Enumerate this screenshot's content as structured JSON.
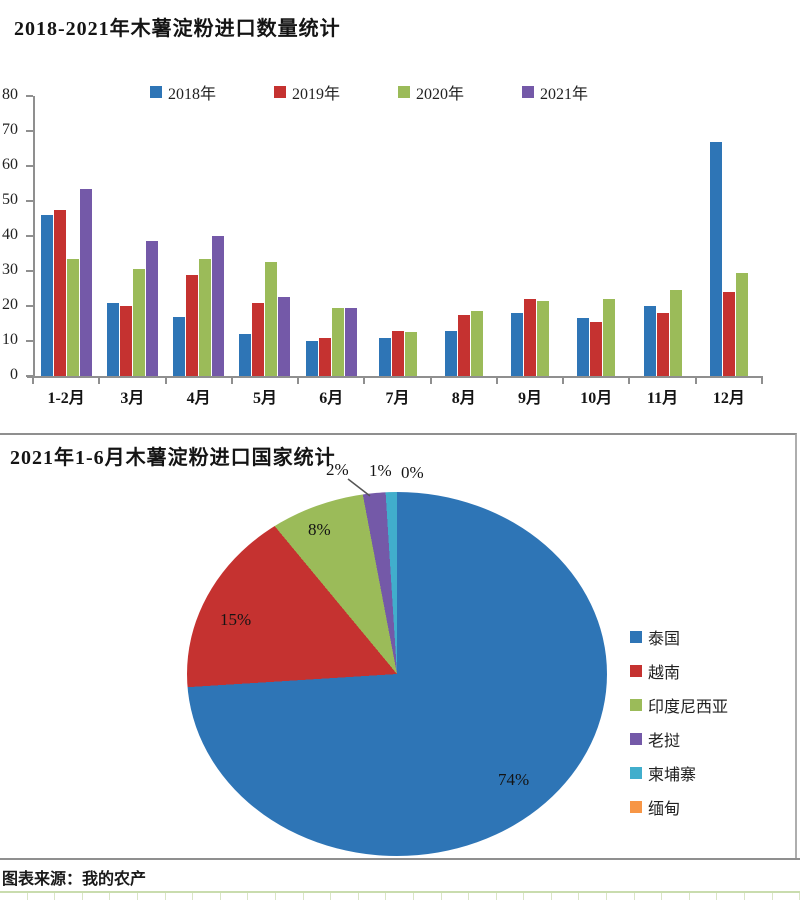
{
  "bar_section": {
    "title": "2018-2021年木薯淀粉进口数量统计"
  },
  "pie_section": {
    "title": "2021年1-6月木薯淀粉进口国家统计"
  },
  "footer": {
    "source": "图表来源：我的农产"
  },
  "colors": {
    "blue": "#2E75B6",
    "red": "#C53230",
    "green": "#9BBB59",
    "purple": "#7459A8",
    "cyan": "#41AECC",
    "orange": "#F79646",
    "axis": "#8f8f8f"
  },
  "chart_data": [
    {
      "type": "bar",
      "title": "2018-2021年木薯淀粉进口数量统计",
      "categories": [
        "1-2月",
        "3月",
        "4月",
        "5月",
        "6月",
        "7月",
        "8月",
        "9月",
        "10月",
        "11月",
        "12月"
      ],
      "series": [
        {
          "name": "2018年",
          "color": "#2E75B6",
          "values": [
            46,
            21,
            17,
            12,
            10,
            11,
            13,
            18,
            16.5,
            20,
            67
          ]
        },
        {
          "name": "2019年",
          "color": "#C53230",
          "values": [
            47.5,
            20,
            29,
            21,
            11,
            13,
            17.5,
            22,
            15.5,
            18,
            24
          ]
        },
        {
          "name": "2020年",
          "color": "#9BBB59",
          "values": [
            33.5,
            30.5,
            33.5,
            32.5,
            19.5,
            12.5,
            18.5,
            21.5,
            22,
            24.5,
            29.5
          ]
        },
        {
          "name": "2021年",
          "color": "#7459A8",
          "values": [
            53.5,
            38.5,
            40,
            22.5,
            19.5,
            null,
            null,
            null,
            null,
            null,
            null
          ]
        }
      ],
      "xlabel": "",
      "ylabel": "",
      "ylim": [
        0,
        80
      ],
      "ytick_step": 10,
      "grid": false,
      "legend_position": "top"
    },
    {
      "type": "pie",
      "title": "2021年1-6月木薯淀粉进口国家统计",
      "slices": [
        {
          "label": "泰国",
          "value": 74,
          "pct_label": "74%",
          "color": "#2E75B6"
        },
        {
          "label": "越南",
          "value": 15,
          "pct_label": "15%",
          "color": "#C53230"
        },
        {
          "label": "印度尼西亚",
          "value": 8,
          "pct_label": "8%",
          "color": "#9BBB59"
        },
        {
          "label": "老挝",
          "value": 2,
          "pct_label": "2%",
          "color": "#7459A8"
        },
        {
          "label": "柬埔寨",
          "value": 1,
          "pct_label": "1%",
          "color": "#41AECC"
        },
        {
          "label": "缅甸",
          "value": 0,
          "pct_label": "0%",
          "color": "#F79646"
        }
      ],
      "start_angle_deg": 0,
      "direction": "clockwise",
      "legend_position": "right"
    }
  ]
}
